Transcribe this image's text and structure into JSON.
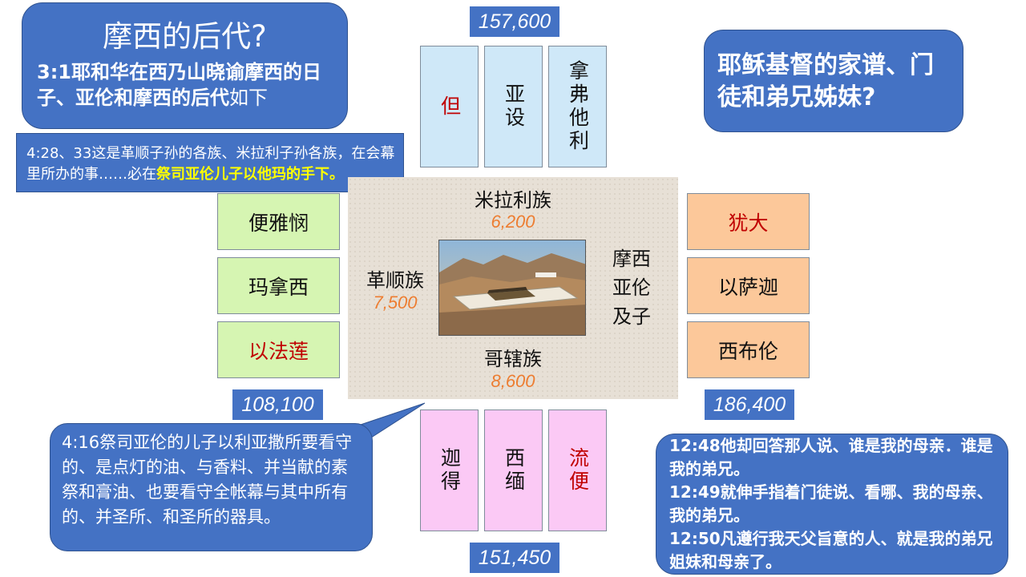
{
  "top_left_bubble": {
    "title": "摩西的后代?",
    "verse_ref_text": "3:1耶和华在西乃山晓谕摩西的日子、",
    "verse_bold": "亚伦和摩西的后代",
    "verse_tail": "如下"
  },
  "left_note": {
    "text": "4:28、33这是革顺子孙的各族、米拉利子孙各族，在会幕里所办的事……必在",
    "highlight": "祭司亚伦儿子以他玛的手下。"
  },
  "top_right_bubble": {
    "title": "耶稣基督的家谱、门徒和弟兄姊妹?"
  },
  "camp": {
    "north": {
      "total": "157,600",
      "tribes": [
        "但",
        "亚设",
        "拿弗他利"
      ]
    },
    "west": {
      "total": "108,100",
      "tribes": [
        "便雅悯",
        "玛拿西",
        "以法莲"
      ]
    },
    "east": {
      "total": "186,400",
      "tribes": [
        "犹大",
        "以萨迦",
        "西布伦"
      ]
    },
    "south": {
      "total": "151,450",
      "tribes": [
        "迦得",
        "西缅",
        "流便"
      ]
    }
  },
  "levites": {
    "merari": {
      "name": "米拉利族",
      "count": "6,200"
    },
    "gershon": {
      "name": "革顺族",
      "count": "7,500"
    },
    "kohath": {
      "name": "哥辖族",
      "count": "8,600"
    },
    "moses_aaron": {
      "line1": "摩西",
      "line2": "亚伦",
      "line3": "及子"
    }
  },
  "bottom_left_bubble": {
    "text": "4:16祭司亚伦的儿子以利亚撒所要看守的、是点灯的油、与香料、并当献的素祭和膏油、也要看守全帐幕与其中所有的、并圣所、和圣所的器具。"
  },
  "bottom_right_bubble": {
    "v1": "12:48他却回答那人说、谁是我的母亲．谁是我的弟兄。",
    "v2": "12:49就伸手指着门徒说、看哪、我的母亲、我的弟兄。",
    "v3": "12:50凡遵行我天父旨意的人、就是我的弟兄姐妹和母亲了。"
  },
  "colors": {
    "bubble": "#4472c4",
    "red": "#c00000",
    "orange_num": "#ed7d31",
    "highlight": "#ffff00"
  }
}
